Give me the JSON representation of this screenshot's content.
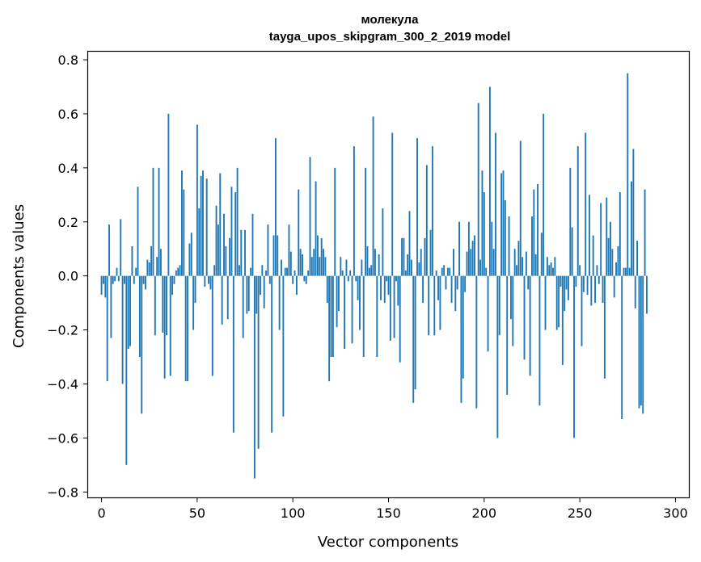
{
  "chart_data": {
    "type": "bar",
    "title": "молекула",
    "subtitle": "tayga_upos_skipgram_300_2_2019 model",
    "xlabel": "Vector components",
    "ylabel": "Components values",
    "xlim": [
      -7,
      307
    ],
    "ylim": [
      -0.82,
      0.83
    ],
    "xticks": [
      0,
      50,
      100,
      150,
      200,
      250,
      300
    ],
    "xtick_labels": [
      "0",
      "50",
      "100",
      "150",
      "200",
      "250",
      "300"
    ],
    "yticks": [
      -0.8,
      -0.6,
      -0.4,
      -0.2,
      0.0,
      0.2,
      0.4,
      0.6,
      0.8
    ],
    "ytick_labels": [
      "−0.8",
      "−0.6",
      "−0.4",
      "−0.2",
      "0.0",
      "0.2",
      "0.4",
      "0.6",
      "0.8"
    ],
    "bar_color": "#1f77b4",
    "grid": false,
    "values": [
      -0.07,
      -0.03,
      -0.08,
      -0.39,
      0.19,
      -0.23,
      -0.03,
      -0.02,
      0.03,
      -0.02,
      0.21,
      -0.4,
      -0.03,
      -0.7,
      -0.27,
      -0.26,
      0.11,
      -0.03,
      0.03,
      0.33,
      -0.3,
      -0.51,
      -0.03,
      -0.05,
      0.06,
      0.05,
      0.11,
      0.4,
      -0.22,
      0.07,
      0.4,
      0.1,
      -0.21,
      -0.38,
      -0.22,
      0.6,
      -0.37,
      -0.07,
      -0.03,
      0.02,
      0.03,
      0.04,
      0.39,
      0.32,
      -0.39,
      -0.39,
      0.12,
      0.16,
      -0.2,
      -0.1,
      0.56,
      0.25,
      0.37,
      0.39,
      -0.04,
      0.36,
      -0.03,
      -0.05,
      -0.37,
      0.04,
      0.26,
      0.19,
      0.38,
      -0.18,
      0.23,
      0.11,
      -0.16,
      0.14,
      0.33,
      -0.58,
      0.31,
      0.4,
      0.04,
      0.17,
      -0.23,
      0.17,
      -0.14,
      -0.13,
      0.03,
      0.23,
      -0.75,
      -0.14,
      -0.64,
      -0.07,
      0.04,
      -0.12,
      0.02,
      0.19,
      -0.03,
      -0.58,
      0.15,
      0.51,
      0.15,
      -0.2,
      0.06,
      -0.52,
      0.03,
      0.03,
      0.19,
      0.09,
      -0.03,
      0.02,
      -0.07,
      0.32,
      0.1,
      0.08,
      -0.02,
      -0.03,
      0.02,
      0.44,
      0.07,
      0.1,
      0.35,
      0.15,
      0.07,
      0.14,
      0.1,
      0.07,
      -0.1,
      -0.39,
      -0.3,
      -0.3,
      0.4,
      -0.19,
      -0.13,
      0.07,
      0.02,
      -0.27,
      0.06,
      -0.02,
      0.02,
      -0.25,
      0.48,
      -0.02,
      -0.09,
      -0.2,
      0.06,
      -0.3,
      0.4,
      0.11,
      0.03,
      0.04,
      0.59,
      0.1,
      -0.3,
      0.08,
      -0.09,
      0.25,
      -0.1,
      -0.02,
      -0.07,
      -0.24,
      0.53,
      -0.23,
      -0.02,
      -0.11,
      -0.32,
      0.14,
      0.14,
      0.02,
      0.08,
      0.24,
      0.06,
      -0.47,
      -0.42,
      0.51,
      0.05,
      0.1,
      -0.1,
      0.14,
      0.41,
      -0.22,
      0.17,
      0.48,
      -0.22,
      0.02,
      -0.09,
      -0.2,
      0.03,
      0.04,
      -0.05,
      0.03,
      0.03,
      -0.1,
      0.1,
      -0.13,
      -0.05,
      0.2,
      -0.47,
      -0.38,
      -0.06,
      0.09,
      0.2,
      0.1,
      0.13,
      0.15,
      -0.49,
      0.64,
      0.06,
      0.39,
      0.31,
      0.03,
      -0.28,
      0.7,
      0.2,
      0.1,
      0.53,
      -0.6,
      -0.22,
      0.38,
      0.39,
      0.28,
      -0.44,
      0.22,
      -0.16,
      -0.26,
      0.1,
      0.04,
      0.13,
      0.5,
      0.07,
      -0.31,
      0.09,
      -0.05,
      -0.37,
      0.22,
      0.32,
      0.08,
      0.34,
      -0.48,
      0.16,
      0.6,
      -0.2,
      0.07,
      0.04,
      0.05,
      0.03,
      0.07,
      -0.2,
      -0.19,
      -0.04,
      -0.33,
      -0.13,
      -0.05,
      -0.09,
      0.4,
      0.18,
      -0.6,
      -0.04,
      0.48,
      0.04,
      -0.26,
      -0.06,
      0.53,
      -0.07,
      0.3,
      -0.11,
      0.15,
      -0.1,
      0.04,
      -0.03,
      0.27,
      -0.1,
      -0.38,
      0.29,
      0.14,
      0.2,
      0.1,
      -0.08,
      0.05,
      0.11,
      0.31,
      -0.53,
      0.03,
      0.03,
      0.75,
      0.03,
      0.35,
      0.47,
      -0.12,
      0.13,
      -0.49,
      -0.48,
      -0.51,
      0.32,
      -0.14
    ]
  }
}
